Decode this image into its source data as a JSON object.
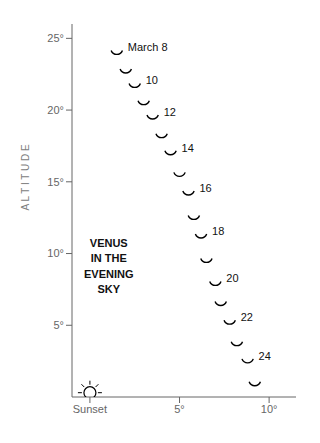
{
  "chart_data": {
    "type": "scatter",
    "title": "VENUS\nIN THE\nEVENING\nSKY",
    "ylabel": "A L T I T U D E",
    "xlim": [
      -1.0,
      11.5
    ],
    "ylim": [
      0,
      26
    ],
    "xticks": [
      {
        "value": 0,
        "label": "Sunset"
      },
      {
        "value": 5,
        "label": "5°"
      },
      {
        "value": 10,
        "label": "10°"
      }
    ],
    "yticks": [
      {
        "value": 5,
        "label": "5°"
      },
      {
        "value": 10,
        "label": "10°"
      },
      {
        "value": 15,
        "label": "15°"
      },
      {
        "value": 20,
        "label": "20°"
      },
      {
        "value": 25,
        "label": "25°"
      }
    ],
    "grid": false,
    "series": [
      {
        "x": [
          1.5,
          2.0,
          2.5,
          3.0,
          3.5,
          4.0,
          4.5,
          5.0,
          5.5,
          5.8,
          6.2,
          6.5,
          7.0,
          7.3,
          7.8,
          8.2,
          8.8,
          9.2
        ],
        "values": [
          24.3,
          23.0,
          22.0,
          20.8,
          19.8,
          18.5,
          17.3,
          15.8,
          14.5,
          12.8,
          11.5,
          9.8,
          8.2,
          6.8,
          5.5,
          4.0,
          2.8,
          1.2
        ],
        "marker": "crescent",
        "color": "#000000"
      },
      {
        "x": [
          0.0
        ],
        "values": [
          0.3
        ],
        "marker": "sun",
        "color": "#000000"
      }
    ],
    "annotations": [
      {
        "x": 1.5,
        "y": 24.3,
        "text": "March 8"
      },
      {
        "x": 2.5,
        "y": 22.0,
        "text": "10"
      },
      {
        "x": 3.5,
        "y": 19.8,
        "text": "12"
      },
      {
        "x": 4.5,
        "y": 17.3,
        "text": "14"
      },
      {
        "x": 5.5,
        "y": 14.5,
        "text": "16"
      },
      {
        "x": 6.2,
        "y": 11.5,
        "text": "18"
      },
      {
        "x": 7.0,
        "y": 8.2,
        "text": "20"
      },
      {
        "x": 7.8,
        "y": 5.5,
        "text": "22"
      },
      {
        "x": 8.8,
        "y": 2.8,
        "text": "24"
      }
    ]
  }
}
